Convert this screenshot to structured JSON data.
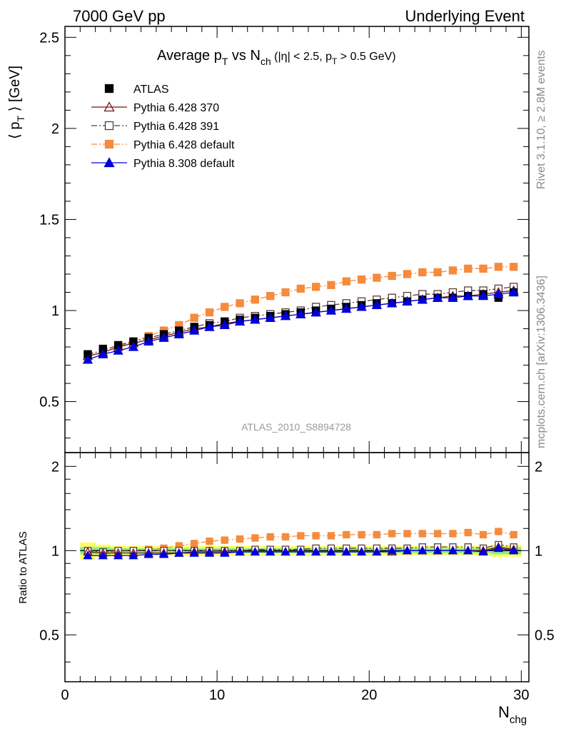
{
  "header": {
    "left": "7000 GeV pp",
    "right": "Underlying Event"
  },
  "side": {
    "rivet": "Rivet 3.1.10, ≥ 2.8M events",
    "mcplots": "mcplots.cern.ch [arXiv:1306.3436]"
  },
  "watermark": "ATLAS_2010_S8894728",
  "chart_data": [
    {
      "type": "line",
      "title": "Average p_T vs N_ch (|η| < 2.5, p_T > 0.5 GeV)",
      "title_parts": {
        "t1": "Average p",
        "t1_sub": "T",
        "t2": " vs N",
        "t2_sub": "ch",
        "t3": " (|η| < 2.5, p",
        "t3_sub": "T",
        "t4": " > 0.5 GeV)"
      },
      "ylabel": "⟨ p_T ⟩ [GeV]",
      "ylabel_parts": {
        "pre": "⟨ p",
        "sub": "T",
        "post": " ⟩ [GeV]"
      },
      "xlabel": "",
      "xlim": [
        0,
        30.5
      ],
      "ylim": [
        0.22,
        2.56
      ],
      "yticks": [
        "0.5",
        "1",
        "1.5",
        "2",
        "2.5"
      ],
      "legend_position": "top-left",
      "x": [
        1.5,
        2.5,
        3.5,
        4.5,
        5.5,
        6.5,
        7.5,
        8.5,
        9.5,
        10.5,
        11.5,
        12.5,
        13.5,
        14.5,
        15.5,
        16.5,
        17.5,
        18.5,
        19.5,
        20.5,
        21.5,
        22.5,
        23.5,
        24.5,
        25.5,
        26.5,
        27.5,
        28.5,
        29.5
      ],
      "series": [
        {
          "name": "ATLAS",
          "color": "#000000",
          "marker": "filled-square",
          "line": "none",
          "values": [
            0.76,
            0.79,
            0.81,
            0.83,
            0.85,
            0.87,
            0.89,
            0.91,
            0.92,
            0.94,
            0.95,
            0.96,
            0.97,
            0.98,
            0.99,
            1.0,
            1.01,
            1.02,
            1.03,
            1.04,
            1.04,
            1.05,
            1.06,
            1.07,
            1.07,
            1.08,
            1.09,
            1.07,
            1.1
          ]
        },
        {
          "name": "Pythia 6.428 370",
          "color": "#7a1010",
          "marker": "open-triangle",
          "line": "solid",
          "values": [
            0.75,
            0.77,
            0.8,
            0.82,
            0.84,
            0.86,
            0.88,
            0.9,
            0.91,
            0.93,
            0.94,
            0.95,
            0.96,
            0.97,
            0.98,
            0.99,
            1.0,
            1.01,
            1.02,
            1.03,
            1.04,
            1.05,
            1.06,
            1.07,
            1.08,
            1.08,
            1.09,
            1.1,
            1.11
          ]
        },
        {
          "name": "Pythia 6.428 391",
          "color": "#5a3a3a",
          "marker": "open-square",
          "line": "dashdot",
          "values": [
            0.76,
            0.78,
            0.81,
            0.83,
            0.85,
            0.87,
            0.89,
            0.91,
            0.93,
            0.94,
            0.96,
            0.97,
            0.98,
            0.99,
            1.0,
            1.02,
            1.03,
            1.04,
            1.05,
            1.06,
            1.07,
            1.08,
            1.09,
            1.09,
            1.1,
            1.11,
            1.11,
            1.12,
            1.13
          ]
        },
        {
          "name": "Pythia 6.428 default",
          "color": "#f58b3c",
          "marker": "filled-square",
          "line": "dashdot",
          "values": [
            0.75,
            0.77,
            0.8,
            0.83,
            0.86,
            0.89,
            0.92,
            0.96,
            0.99,
            1.02,
            1.04,
            1.06,
            1.08,
            1.1,
            1.12,
            1.13,
            1.14,
            1.16,
            1.17,
            1.18,
            1.19,
            1.2,
            1.21,
            1.21,
            1.22,
            1.23,
            1.23,
            1.24,
            1.24
          ]
        },
        {
          "name": "Pythia 8.308 default",
          "color": "#0000dd",
          "marker": "filled-triangle",
          "line": "solid",
          "values": [
            0.73,
            0.76,
            0.78,
            0.8,
            0.83,
            0.85,
            0.87,
            0.89,
            0.91,
            0.92,
            0.94,
            0.95,
            0.96,
            0.97,
            0.98,
            0.99,
            1.0,
            1.01,
            1.02,
            1.03,
            1.04,
            1.05,
            1.06,
            1.07,
            1.07,
            1.08,
            1.08,
            1.09,
            1.1
          ]
        }
      ]
    },
    {
      "type": "line",
      "title": "",
      "ylabel": "Ratio to ATLAS",
      "xlabel": "N_chg",
      "xlabel_parts": {
        "main": "N",
        "sub": "chg"
      },
      "xlim": [
        0,
        30.5
      ],
      "ylim": [
        0.34,
        2.24
      ],
      "xticks": [
        "0",
        "10",
        "20",
        "30"
      ],
      "yticks": [
        "0.5",
        "1",
        "2"
      ],
      "band_colors": {
        "inner": "#88ee88",
        "outer": "#ffff66"
      },
      "band_inner": [
        0.03,
        0.03,
        0.02,
        0.02,
        0.02,
        0.02,
        0.02,
        0.02,
        0.02,
        0.02,
        0.02,
        0.02,
        0.02,
        0.02,
        0.02,
        0.02,
        0.02,
        0.02,
        0.02,
        0.02,
        0.02,
        0.02,
        0.02,
        0.02,
        0.02,
        0.02,
        0.02,
        0.03,
        0.03
      ],
      "band_outer": [
        0.07,
        0.05,
        0.04,
        0.04,
        0.04,
        0.04,
        0.04,
        0.04,
        0.04,
        0.04,
        0.04,
        0.04,
        0.04,
        0.04,
        0.04,
        0.04,
        0.04,
        0.04,
        0.04,
        0.04,
        0.04,
        0.04,
        0.04,
        0.04,
        0.04,
        0.04,
        0.04,
        0.05,
        0.05
      ],
      "x": [
        1.5,
        2.5,
        3.5,
        4.5,
        5.5,
        6.5,
        7.5,
        8.5,
        9.5,
        10.5,
        11.5,
        12.5,
        13.5,
        14.5,
        15.5,
        16.5,
        17.5,
        18.5,
        19.5,
        20.5,
        21.5,
        22.5,
        23.5,
        24.5,
        25.5,
        26.5,
        27.5,
        28.5,
        29.5
      ],
      "series": [
        {
          "name": "Pythia 6.428 370",
          "values": [
            0.99,
            0.98,
            0.98,
            0.98,
            0.98,
            0.98,
            0.98,
            0.99,
            0.99,
            0.99,
            0.99,
            0.99,
            0.99,
            0.99,
            0.99,
            0.99,
            0.99,
            0.99,
            0.99,
            0.99,
            0.99,
            1.0,
            1.0,
            1.0,
            1.0,
            1.0,
            1.0,
            1.03,
            1.01
          ]
        },
        {
          "name": "Pythia 6.428 391",
          "values": [
            1.0,
            0.99,
            1.0,
            1.0,
            1.0,
            1.0,
            1.0,
            1.0,
            1.0,
            1.0,
            1.0,
            1.01,
            1.01,
            1.01,
            1.01,
            1.02,
            1.02,
            1.02,
            1.02,
            1.02,
            1.02,
            1.02,
            1.03,
            1.03,
            1.03,
            1.03,
            1.02,
            1.05,
            1.03
          ]
        },
        {
          "name": "Pythia 6.428 default",
          "values": [
            0.99,
            0.98,
            0.99,
            1.0,
            1.01,
            1.02,
            1.04,
            1.06,
            1.08,
            1.09,
            1.1,
            1.11,
            1.12,
            1.12,
            1.13,
            1.13,
            1.13,
            1.14,
            1.14,
            1.14,
            1.15,
            1.15,
            1.15,
            1.15,
            1.15,
            1.16,
            1.14,
            1.17,
            1.14
          ]
        },
        {
          "name": "Pythia 8.308 default",
          "values": [
            0.96,
            0.96,
            0.96,
            0.96,
            0.97,
            0.97,
            0.98,
            0.98,
            0.98,
            0.98,
            0.99,
            0.99,
            0.99,
            0.99,
            0.99,
            0.99,
            0.99,
            0.99,
            0.99,
            0.99,
            1.0,
            1.0,
            1.0,
            1.0,
            1.0,
            1.0,
            0.99,
            1.02,
            1.0
          ]
        }
      ]
    }
  ]
}
